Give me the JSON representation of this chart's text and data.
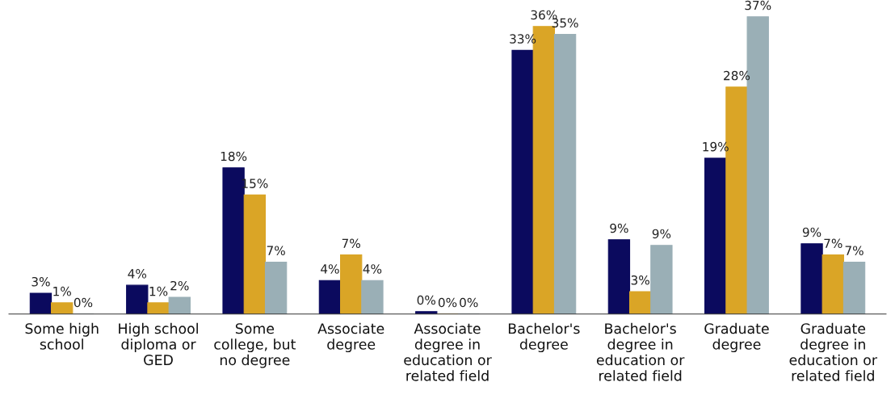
{
  "chart_data": {
    "type": "bar",
    "categories": [
      "Some high\nschool",
      "High school\ndiploma or\nGED",
      "Some\ncollege, but\nno degree",
      "Associate\ndegree",
      "Associate\ndegree in\neducation or\nrelated field",
      "Bachelor's\ndegree",
      "Bachelor's\ndegree in\neducation or\nrelated field",
      "Graduate\ndegree",
      "Graduate\ndegree in\neducation or\nrelated field"
    ],
    "series": [
      {
        "color": "#0b0a5e",
        "values": [
          2.6,
          3.6,
          18.3,
          4.2,
          0.3,
          33,
          9.3,
          19.5,
          8.8
        ],
        "value_labels": [
          "3%",
          "4%",
          "18%",
          "4%",
          "0%",
          "33%",
          "9%",
          "19%",
          "9%"
        ]
      },
      {
        "color": "#daa526",
        "values": [
          1.4,
          1.4,
          14.9,
          7.4,
          0,
          36,
          2.8,
          28.4,
          7.4
        ],
        "value_labels": [
          "1%",
          "1%",
          "15%",
          "7%",
          "0%",
          "36%",
          "3%",
          "28%",
          "7%"
        ]
      },
      {
        "color": "#9aafb6",
        "values": [
          0,
          2.1,
          6.5,
          4.2,
          0,
          35,
          8.6,
          37.2,
          6.5
        ],
        "value_labels": [
          "0%",
          "2%",
          "7%",
          "4%",
          "0%",
          "35%",
          "9%",
          "37%",
          "7%"
        ]
      }
    ],
    "grid": false
  }
}
